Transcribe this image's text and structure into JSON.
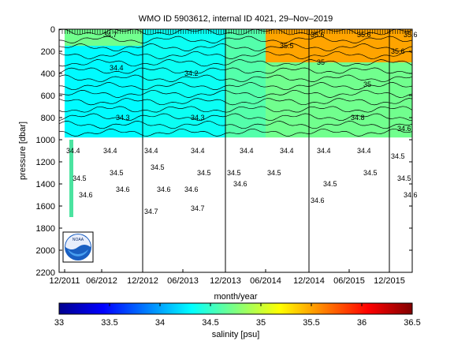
{
  "chart_data": {
    "type": "heatmap",
    "title": "WMO ID 5903612, internal ID 4021, 29–Nov–2019",
    "xlabel": "month/year",
    "ylabel": "pressure [dbar]",
    "x_ticks": [
      "12/2011",
      "06/2012",
      "12/2012",
      "06/2013",
      "12/2013",
      "06/2014",
      "12/2014",
      "06/2015",
      "12/2015"
    ],
    "y_ticks": [
      0,
      200,
      400,
      600,
      800,
      1000,
      1200,
      1400,
      1600,
      1800,
      2000,
      2200
    ],
    "ylim": [
      2200,
      0
    ],
    "colorbar": {
      "label": "salinity [psu]",
      "ticks": [
        33,
        33.5,
        34,
        34.5,
        35,
        35.5,
        36,
        36.5
      ],
      "range": [
        33,
        36.5
      ]
    },
    "vertical_lines": [
      "12/2012",
      "12/2013",
      "12/2014",
      "12/2015"
    ],
    "field_regions": [
      {
        "x_from": "12/2011",
        "x_to": "12/2012",
        "p_from": 0,
        "p_to": 980,
        "salinity": 34.3
      },
      {
        "x_from": "12/2012",
        "x_to": "12/2013",
        "p_from": 0,
        "p_to": 980,
        "salinity": 34.35
      },
      {
        "x_from": "12/2013",
        "x_to": "06/2014",
        "p_from": 0,
        "p_to": 980,
        "salinity": 34.6
      },
      {
        "x_from": "06/2014",
        "x_to": "12/2015",
        "p_from": 0,
        "p_to": 980,
        "salinity": 34.7
      },
      {
        "x_from": "06/2014",
        "x_to": "12/2015",
        "p_from": 0,
        "p_to": 300,
        "salinity": 35.5
      },
      {
        "x_from": "12/2011",
        "x_to": "12/2012",
        "p_from": 0,
        "p_to": 150,
        "salinity": 34.7
      }
    ],
    "labels": [
      {
        "x": "12/2011",
        "p": 1100,
        "text": "34.4"
      },
      {
        "x": "12/2011",
        "p": 1350,
        "text": "34.5"
      },
      {
        "x": "12/2011",
        "p": 1500,
        "text": "34.6"
      },
      {
        "x": "06/2012",
        "p": 1100,
        "text": "34.4"
      },
      {
        "x": "06/2012",
        "p": 1300,
        "text": "34.5"
      },
      {
        "x": "06/2012",
        "p": 1450,
        "text": "34.6"
      },
      {
        "x": "12/2012",
        "p": 1100,
        "text": "34.4"
      },
      {
        "x": "12/2012",
        "p": 1250,
        "text": "34.5"
      },
      {
        "x": "12/2012",
        "p": 1450,
        "text": "34.6"
      },
      {
        "x": "12/2012",
        "p": 1650,
        "text": "34.7"
      },
      {
        "x": "06/2013",
        "p": 1100,
        "text": "34.4"
      },
      {
        "x": "06/2013",
        "p": 1300,
        "text": "34.5"
      },
      {
        "x": "06/2013",
        "p": 1450,
        "text": "34.6"
      },
      {
        "x": "06/2013",
        "p": 1620,
        "text": "34.7"
      },
      {
        "x": "12/2013",
        "p": 1100,
        "text": "34.4"
      },
      {
        "x": "12/2013",
        "p": 1300,
        "text": "34.5"
      },
      {
        "x": "12/2013",
        "p": 1400,
        "text": "34.6"
      },
      {
        "x": "06/2014",
        "p": 1100,
        "text": "34.4"
      },
      {
        "x": "06/2014",
        "p": 1300,
        "text": "34.5"
      },
      {
        "x": "12/2014",
        "p": 1100,
        "text": "34.4"
      },
      {
        "x": "12/2014",
        "p": 1400,
        "text": "34.5"
      },
      {
        "x": "12/2014",
        "p": 1550,
        "text": "34.6"
      },
      {
        "x": "06/2015",
        "p": 1100,
        "text": "34.4"
      },
      {
        "x": "06/2015",
        "p": 1300,
        "text": "34.5"
      },
      {
        "x": "12/2015",
        "p": 1150,
        "text": "34.5"
      },
      {
        "x": "12/2015",
        "p": 1350,
        "text": "34.5"
      },
      {
        "x": "12/2015",
        "p": 1500,
        "text": "34.6"
      },
      {
        "x": "06/2012",
        "p": 50,
        "text": "34.7"
      },
      {
        "x": "06/2012",
        "p": 350,
        "text": "34.4"
      },
      {
        "x": "06/2012",
        "p": 800,
        "text": "34.3"
      },
      {
        "x": "06/2013",
        "p": 400,
        "text": "34.2"
      },
      {
        "x": "06/2013",
        "p": 800,
        "text": "34.3"
      },
      {
        "x": "06/2014",
        "p": 150,
        "text": "35.5"
      },
      {
        "x": "12/2014",
        "p": 50,
        "text": "35.6"
      },
      {
        "x": "06/2015",
        "p": 50,
        "text": "35.6"
      },
      {
        "x": "12/2015",
        "p": 50,
        "text": "35.6"
      },
      {
        "x": "12/2015",
        "p": 200,
        "text": "35.6"
      },
      {
        "x": "12/2014",
        "p": 300,
        "text": "35"
      },
      {
        "x": "06/2015",
        "p": 500,
        "text": "35"
      },
      {
        "x": "06/2015",
        "p": 800,
        "text": "34.8"
      },
      {
        "x": "12/2015",
        "p": 900,
        "text": "34.6"
      }
    ]
  },
  "logo": {
    "text": "NOAA"
  }
}
